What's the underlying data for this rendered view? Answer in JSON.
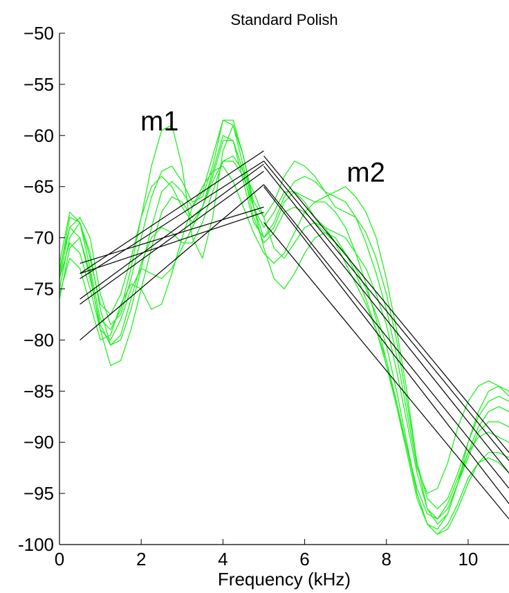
{
  "chart_data": {
    "type": "line",
    "title": "Standard Polish",
    "xlabel": "Frequency (kHz)",
    "ylabel": "",
    "xlim": [
      0,
      11
    ],
    "ylim": [
      -100,
      -50
    ],
    "xticks": [
      0,
      2,
      4,
      6,
      8,
      10
    ],
    "xtick_labels": [
      "0",
      "2",
      "4",
      "6",
      "8",
      "10"
    ],
    "yticks": [
      -50,
      -55,
      -60,
      -65,
      -70,
      -75,
      -80,
      -85,
      -90,
      -95,
      -100
    ],
    "ytick_labels": [
      "−50",
      "−55",
      "−60",
      "−65",
      "−70",
      "−75",
      "−80",
      "−85",
      "−90",
      "−95",
      "-100"
    ],
    "grid": false,
    "colors": {
      "spectra": "#22ee22",
      "fits": "#000000"
    },
    "annotations": [
      {
        "text": "m1",
        "x": 2.45,
        "y": -59.5
      },
      {
        "text": "m2",
        "x": 7.5,
        "y": -64.5
      }
    ],
    "spectra_x": [
      0.0,
      0.25,
      0.5,
      0.75,
      1.0,
      1.25,
      1.5,
      1.75,
      2.0,
      2.25,
      2.5,
      2.75,
      3.0,
      3.25,
      3.5,
      3.75,
      4.0,
      4.25,
      4.5,
      4.75,
      5.0,
      5.25,
      5.5,
      5.75,
      6.0,
      6.25,
      6.5,
      6.75,
      7.0,
      7.25,
      7.5,
      7.75,
      8.0,
      8.25,
      8.5,
      8.75,
      9.0,
      9.25,
      9.5,
      9.75,
      10.0,
      10.25,
      10.5,
      10.75,
      11.0
    ],
    "spectra": [
      {
        "values": [
          -73.5,
          -68.0,
          -68.5,
          -73.0,
          -78.0,
          -79.0,
          -77.0,
          -73.0,
          -68.0,
          -63.0,
          -59.5,
          -59.0,
          -63.0,
          -70.0,
          -72.0,
          -68.0,
          -61.5,
          -59.0,
          -62.0,
          -67.0,
          -70.0,
          -69.0,
          -66.5,
          -65.5,
          -66.0,
          -66.5,
          -66.0,
          -65.5,
          -65.0,
          -66.0,
          -67.5,
          -70.0,
          -74.0,
          -79.0,
          -85.0,
          -92.0,
          -96.5,
          -98.0,
          -97.0,
          -94.0,
          -90.0,
          -87.0,
          -85.0,
          -84.5,
          -85.0
        ]
      },
      {
        "values": [
          -74.0,
          -69.0,
          -68.0,
          -70.0,
          -75.5,
          -78.5,
          -77.5,
          -74.0,
          -70.0,
          -66.0,
          -63.5,
          -63.0,
          -64.5,
          -66.5,
          -66.0,
          -63.0,
          -58.5,
          -58.5,
          -62.0,
          -66.5,
          -68.0,
          -66.5,
          -64.0,
          -62.5,
          -63.0,
          -64.0,
          -65.5,
          -67.0,
          -67.5,
          -68.0,
          -69.5,
          -72.0,
          -75.5,
          -80.0,
          -86.0,
          -92.0,
          -95.5,
          -96.5,
          -95.5,
          -93.0,
          -90.0,
          -87.5,
          -86.0,
          -85.5,
          -86.0
        ]
      },
      {
        "values": [
          -75.0,
          -70.0,
          -68.5,
          -71.5,
          -77.0,
          -80.5,
          -80.0,
          -77.0,
          -73.0,
          -69.0,
          -65.5,
          -64.5,
          -65.5,
          -67.0,
          -65.5,
          -62.0,
          -58.5,
          -59.0,
          -63.0,
          -67.0,
          -69.0,
          -67.5,
          -65.5,
          -65.5,
          -66.5,
          -68.0,
          -69.0,
          -69.5,
          -70.0,
          -71.5,
          -73.0,
          -75.5,
          -78.5,
          -83.0,
          -88.0,
          -93.0,
          -96.5,
          -97.5,
          -96.5,
          -94.0,
          -91.5,
          -89.0,
          -88.0,
          -88.0,
          -88.5
        ]
      },
      {
        "values": [
          -76.0,
          -71.0,
          -70.0,
          -73.5,
          -79.0,
          -82.5,
          -82.0,
          -79.0,
          -75.0,
          -71.0,
          -67.5,
          -66.0,
          -66.5,
          -68.0,
          -67.0,
          -64.0,
          -60.5,
          -60.5,
          -63.5,
          -68.0,
          -70.5,
          -69.5,
          -67.5,
          -67.0,
          -67.5,
          -68.5,
          -69.5,
          -70.5,
          -71.5,
          -73.0,
          -75.0,
          -77.5,
          -80.5,
          -85.0,
          -90.0,
          -95.0,
          -98.0,
          -99.0,
          -98.5,
          -96.5,
          -94.0,
          -92.0,
          -91.0,
          -91.0,
          -91.5
        ]
      },
      {
        "values": [
          -72.5,
          -67.5,
          -68.5,
          -72.0,
          -76.5,
          -77.5,
          -75.5,
          -72.0,
          -68.0,
          -65.0,
          -64.0,
          -65.0,
          -67.0,
          -68.5,
          -67.0,
          -63.5,
          -60.0,
          -60.5,
          -64.5,
          -68.5,
          -70.0,
          -68.5,
          -66.0,
          -64.5,
          -64.0,
          -64.5,
          -65.5,
          -66.0,
          -66.5,
          -68.0,
          -70.5,
          -73.5,
          -77.0,
          -81.5,
          -87.0,
          -92.5,
          -95.0,
          -94.5,
          -92.0,
          -88.5,
          -86.0,
          -84.5,
          -84.0,
          -84.5,
          -85.5
        ]
      },
      {
        "values": [
          -73.0,
          -69.0,
          -70.0,
          -74.0,
          -78.5,
          -80.5,
          -79.5,
          -76.0,
          -72.5,
          -70.0,
          -69.0,
          -69.5,
          -70.5,
          -70.5,
          -68.5,
          -65.5,
          -62.5,
          -62.0,
          -63.5,
          -65.5,
          -68.0,
          -71.0,
          -72.0,
          -70.5,
          -69.0,
          -68.5,
          -69.0,
          -70.5,
          -72.5,
          -74.5,
          -76.5,
          -79.0,
          -82.0,
          -86.0,
          -90.5,
          -95.0,
          -98.0,
          -99.0,
          -98.0,
          -96.0,
          -93.5,
          -92.0,
          -91.5,
          -92.0,
          -93.0
        ]
      },
      {
        "values": [
          -74.0,
          -70.5,
          -71.5,
          -75.0,
          -79.0,
          -80.0,
          -78.0,
          -75.0,
          -73.0,
          -73.5,
          -74.0,
          -73.0,
          -71.0,
          -69.0,
          -67.0,
          -64.5,
          -62.5,
          -62.5,
          -64.0,
          -67.0,
          -71.0,
          -74.0,
          -75.0,
          -73.5,
          -71.5,
          -70.0,
          -69.5,
          -70.0,
          -71.5,
          -73.5,
          -76.0,
          -79.0,
          -82.5,
          -86.5,
          -90.5,
          -94.5,
          -97.0,
          -97.5,
          -96.0,
          -93.5,
          -91.0,
          -89.5,
          -89.0,
          -89.5,
          -90.0
        ]
      },
      {
        "values": [
          -75.5,
          -72.0,
          -73.0,
          -76.5,
          -80.0,
          -79.5,
          -76.5,
          -74.5,
          -75.0,
          -77.0,
          -76.5,
          -73.5,
          -70.0,
          -67.0,
          -65.0,
          -63.5,
          -63.0,
          -64.5,
          -67.0,
          -69.5,
          -71.5,
          -72.5,
          -71.5,
          -69.5,
          -67.5,
          -66.5,
          -66.5,
          -67.5,
          -69.0,
          -71.5,
          -74.5,
          -78.0,
          -82.0,
          -86.5,
          -91.0,
          -95.5,
          -98.0,
          -98.5,
          -97.0,
          -94.0,
          -91.0,
          -88.5,
          -87.0,
          -86.5,
          -87.0
        ]
      }
    ],
    "fit_lines": [
      {
        "x": [
          0.5,
          5.0
        ],
        "values": [
          -73.5,
          -61.5
        ]
      },
      {
        "x": [
          0.5,
          5.0
        ],
        "values": [
          -74.0,
          -62.5
        ]
      },
      {
        "x": [
          0.5,
          5.0
        ],
        "values": [
          -76.0,
          -62.8
        ]
      },
      {
        "x": [
          0.5,
          5.0
        ],
        "values": [
          -76.5,
          -63.5
        ]
      },
      {
        "x": [
          0.5,
          5.0
        ],
        "values": [
          -80.0,
          -64.8
        ]
      },
      {
        "x": [
          0.5,
          5.0
        ],
        "values": [
          -72.5,
          -67.0
        ]
      },
      {
        "x": [
          0.5,
          5.0
        ],
        "values": [
          -73.5,
          -67.5
        ]
      },
      {
        "x": [
          5.0,
          11.0
        ],
        "values": [
          -62.0,
          -91.0
        ]
      },
      {
        "x": [
          5.0,
          11.0
        ],
        "values": [
          -62.5,
          -91.8
        ]
      },
      {
        "x": [
          5.0,
          11.0
        ],
        "values": [
          -63.0,
          -93.0
        ]
      },
      {
        "x": [
          5.0,
          11.0
        ],
        "values": [
          -64.8,
          -94.5
        ]
      },
      {
        "x": [
          5.0,
          11.0
        ],
        "values": [
          -65.0,
          -96.0
        ]
      },
      {
        "x": [
          5.0,
          11.0
        ],
        "values": [
          -68.5,
          -97.5
        ]
      }
    ]
  }
}
